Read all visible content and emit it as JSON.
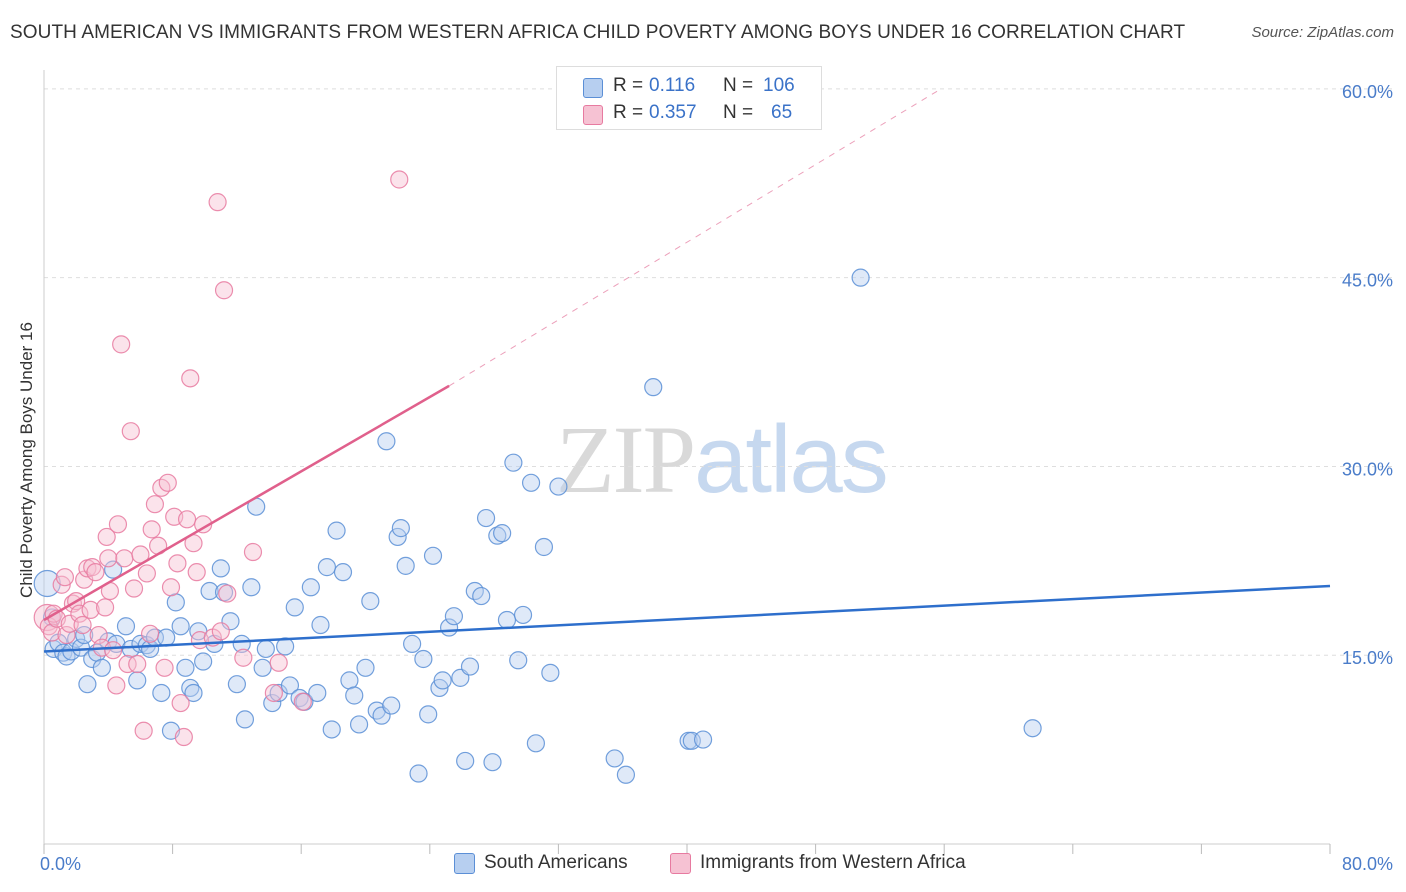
{
  "title": "SOUTH AMERICAN VS IMMIGRANTS FROM WESTERN AFRICA CHILD POVERTY AMONG BOYS UNDER 16 CORRELATION CHART",
  "source": "Source: ZipAtlas.com",
  "watermark": {
    "zip": "ZIP",
    "atlas": "atlas"
  },
  "legend": {
    "rows": [
      {
        "r_label": "R =",
        "r_value": "0.116",
        "n_label": "N =",
        "n_value": "106"
      },
      {
        "r_label": "R =",
        "r_value": "0.357",
        "n_label": "N =",
        "n_value": "65"
      }
    ]
  },
  "bottom_legend": [
    "South Americans",
    "Immigrants from Western Africa"
  ],
  "chart_data": {
    "type": "scatter",
    "ylabel": "Child Poverty Among Boys Under 16",
    "x_tick_labels": [
      "0.0%",
      "80.0%"
    ],
    "y_tick_labels": [
      "15.0%",
      "30.0%",
      "45.0%",
      "60.0%"
    ],
    "x_ticks": [
      0,
      80
    ],
    "y_ticks": [
      15,
      30,
      45,
      60
    ],
    "xlim": [
      0,
      80
    ],
    "ylim": [
      0,
      61.5
    ],
    "grid": true,
    "colors": {
      "blue": "#5b8fd6",
      "blue_fill": "#b7cff0",
      "pink": "#e77aa0",
      "pink_fill": "#f6c2d3",
      "blue_line": "#2e6fcc",
      "pink_line": "#e0608c",
      "tick": "#4a7cc9"
    },
    "series": [
      {
        "name": "South Americans",
        "color": "#5b8fd6",
        "trend": {
          "x": [
            0,
            80
          ],
          "y": [
            15.3,
            20.5
          ],
          "dashed_extension": false
        },
        "points": [
          [
            0.2,
            20.7
          ],
          [
            0.5,
            18.0
          ],
          [
            0.6,
            15.5
          ],
          [
            0.9,
            16.0
          ],
          [
            1.2,
            15.2
          ],
          [
            1.4,
            14.9
          ],
          [
            1.7,
            15.3
          ],
          [
            2.0,
            16.3
          ],
          [
            2.3,
            15.6
          ],
          [
            2.5,
            16.6
          ],
          [
            2.7,
            12.7
          ],
          [
            3.0,
            14.7
          ],
          [
            3.3,
            15.2
          ],
          [
            3.6,
            14.0
          ],
          [
            4.0,
            16.1
          ],
          [
            4.3,
            21.8
          ],
          [
            4.5,
            15.9
          ],
          [
            5.1,
            17.3
          ],
          [
            5.4,
            15.5
          ],
          [
            5.8,
            13.0
          ],
          [
            6.0,
            15.9
          ],
          [
            6.4,
            15.8
          ],
          [
            6.6,
            15.5
          ],
          [
            6.9,
            16.4
          ],
          [
            7.3,
            12.0
          ],
          [
            7.6,
            16.4
          ],
          [
            7.9,
            9.0
          ],
          [
            8.2,
            19.2
          ],
          [
            8.5,
            17.3
          ],
          [
            8.8,
            14.0
          ],
          [
            9.1,
            12.4
          ],
          [
            9.3,
            12.0
          ],
          [
            9.6,
            16.9
          ],
          [
            9.9,
            14.5
          ],
          [
            10.3,
            20.1
          ],
          [
            10.6,
            15.9
          ],
          [
            11.0,
            21.9
          ],
          [
            11.2,
            20.0
          ],
          [
            11.6,
            17.7
          ],
          [
            12.0,
            12.7
          ],
          [
            12.3,
            15.9
          ],
          [
            12.5,
            9.9
          ],
          [
            12.9,
            20.4
          ],
          [
            13.2,
            26.8
          ],
          [
            13.6,
            14.0
          ],
          [
            13.8,
            15.5
          ],
          [
            14.2,
            11.2
          ],
          [
            14.6,
            12.0
          ],
          [
            15.0,
            15.7
          ],
          [
            15.3,
            12.6
          ],
          [
            15.6,
            18.8
          ],
          [
            15.9,
            11.6
          ],
          [
            16.2,
            11.3
          ],
          [
            16.6,
            20.4
          ],
          [
            17.0,
            12.0
          ],
          [
            17.2,
            17.4
          ],
          [
            17.6,
            22.0
          ],
          [
            17.9,
            9.1
          ],
          [
            18.2,
            24.9
          ],
          [
            18.6,
            21.6
          ],
          [
            19.0,
            13.0
          ],
          [
            19.3,
            11.8
          ],
          [
            19.6,
            9.5
          ],
          [
            20.0,
            14.0
          ],
          [
            20.3,
            19.3
          ],
          [
            20.7,
            10.6
          ],
          [
            21.0,
            10.2
          ],
          [
            21.3,
            32.0
          ],
          [
            21.6,
            11.0
          ],
          [
            22.0,
            24.4
          ],
          [
            22.2,
            25.1
          ],
          [
            22.5,
            22.1
          ],
          [
            22.9,
            15.9
          ],
          [
            23.3,
            5.6
          ],
          [
            23.6,
            14.7
          ],
          [
            23.9,
            10.3
          ],
          [
            24.2,
            22.9
          ],
          [
            24.6,
            12.4
          ],
          [
            24.8,
            13.0
          ],
          [
            25.2,
            17.2
          ],
          [
            25.5,
            18.1
          ],
          [
            25.9,
            13.2
          ],
          [
            26.2,
            6.6
          ],
          [
            26.5,
            14.1
          ],
          [
            26.8,
            20.1
          ],
          [
            27.2,
            19.7
          ],
          [
            27.5,
            25.9
          ],
          [
            27.9,
            6.5
          ],
          [
            28.2,
            24.5
          ],
          [
            28.5,
            24.7
          ],
          [
            28.8,
            17.8
          ],
          [
            29.2,
            30.3
          ],
          [
            29.5,
            14.6
          ],
          [
            29.8,
            18.2
          ],
          [
            30.3,
            28.7
          ],
          [
            30.6,
            8.0
          ],
          [
            31.1,
            23.6
          ],
          [
            31.5,
            13.6
          ],
          [
            32.0,
            28.4
          ],
          [
            35.5,
            6.8
          ],
          [
            36.2,
            5.5
          ],
          [
            37.9,
            36.3
          ],
          [
            40.1,
            8.2
          ],
          [
            40.3,
            8.2
          ],
          [
            41.0,
            8.3
          ],
          [
            50.8,
            45.0
          ],
          [
            61.5,
            9.2
          ]
        ]
      },
      {
        "name": "Immigrants from Western Africa",
        "color": "#e77aa0",
        "trend": {
          "x": [
            0,
            25.2
          ],
          "y": [
            17.8,
            36.4
          ],
          "dashed_to": [
            55.8,
            60.0
          ]
        },
        "points": [
          [
            0.2,
            18.0
          ],
          [
            0.3,
            17.3
          ],
          [
            0.5,
            16.8
          ],
          [
            0.6,
            18.3
          ],
          [
            0.8,
            17.9
          ],
          [
            1.1,
            20.6
          ],
          [
            1.3,
            21.2
          ],
          [
            1.4,
            16.6
          ],
          [
            1.6,
            17.5
          ],
          [
            1.8,
            19.1
          ],
          [
            2.0,
            19.3
          ],
          [
            2.2,
            18.3
          ],
          [
            2.4,
            17.4
          ],
          [
            2.5,
            21.0
          ],
          [
            2.7,
            21.9
          ],
          [
            2.9,
            18.6
          ],
          [
            3.0,
            22.0
          ],
          [
            3.2,
            21.6
          ],
          [
            3.4,
            16.6
          ],
          [
            3.6,
            15.6
          ],
          [
            3.8,
            18.8
          ],
          [
            3.9,
            24.4
          ],
          [
            4.0,
            22.7
          ],
          [
            4.1,
            20.1
          ],
          [
            4.3,
            15.4
          ],
          [
            4.5,
            12.6
          ],
          [
            4.6,
            25.4
          ],
          [
            4.8,
            39.7
          ],
          [
            5.0,
            22.7
          ],
          [
            5.2,
            14.3
          ],
          [
            5.4,
            32.8
          ],
          [
            5.6,
            20.3
          ],
          [
            5.8,
            14.3
          ],
          [
            6.0,
            23.0
          ],
          [
            6.2,
            9.0
          ],
          [
            6.4,
            21.5
          ],
          [
            6.6,
            16.7
          ],
          [
            6.7,
            25.0
          ],
          [
            6.9,
            27.0
          ],
          [
            7.1,
            23.7
          ],
          [
            7.3,
            28.3
          ],
          [
            7.5,
            14.0
          ],
          [
            7.7,
            28.7
          ],
          [
            7.9,
            20.4
          ],
          [
            8.1,
            26.0
          ],
          [
            8.3,
            22.3
          ],
          [
            8.5,
            11.2
          ],
          [
            8.7,
            8.5
          ],
          [
            8.9,
            25.8
          ],
          [
            9.1,
            37.0
          ],
          [
            9.3,
            23.9
          ],
          [
            9.5,
            21.6
          ],
          [
            9.7,
            16.2
          ],
          [
            9.9,
            25.4
          ],
          [
            10.5,
            16.4
          ],
          [
            10.8,
            51.0
          ],
          [
            11.0,
            16.9
          ],
          [
            11.2,
            44.0
          ],
          [
            11.4,
            19.9
          ],
          [
            12.4,
            14.8
          ],
          [
            13.0,
            23.2
          ],
          [
            14.3,
            12.0
          ],
          [
            14.6,
            14.4
          ],
          [
            16.1,
            11.3
          ],
          [
            22.1,
            52.8
          ]
        ]
      }
    ]
  }
}
